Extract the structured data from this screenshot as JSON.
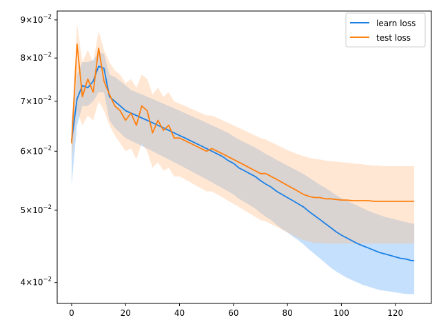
{
  "chart_data": {
    "type": "line",
    "title": "",
    "xlabel": "",
    "ylabel": "",
    "yscale": "log",
    "xlim": [
      -5.35,
      133.35
    ],
    "ylim": [
      0.0375,
      0.0925
    ],
    "x_ticks": [
      0,
      20,
      40,
      60,
      80,
      100,
      120
    ],
    "x_tick_labels": [
      "0",
      "20",
      "40",
      "60",
      "80",
      "100",
      "120"
    ],
    "y_ticks": [
      0.04,
      0.05,
      0.06,
      0.07,
      0.08,
      0.09
    ],
    "y_tick_mantissas": [
      "4",
      "5",
      "6",
      "7",
      "8",
      "9"
    ],
    "y_tick_base": "10",
    "y_tick_exponent": "−2",
    "grid": false,
    "legend_placement": "top-right",
    "x": [
      0,
      2,
      4,
      6,
      8,
      10,
      12,
      14,
      16,
      18,
      20,
      22,
      24,
      26,
      28,
      30,
      32,
      34,
      36,
      38,
      40,
      42,
      44,
      46,
      48,
      50,
      52,
      54,
      56,
      58,
      60,
      62,
      64,
      66,
      68,
      70,
      72,
      74,
      76,
      78,
      80,
      82,
      84,
      86,
      88,
      90,
      92,
      94,
      96,
      98,
      100,
      102,
      104,
      106,
      108,
      110,
      112,
      114,
      116,
      118,
      120,
      122,
      124,
      126,
      127
    ],
    "series": [
      {
        "name": "learn loss",
        "color": "#1f77b4",
        "line_color": "#1a80e6",
        "band_color": "#5aa6f5",
        "values": [
          0.062,
          0.0705,
          0.0735,
          0.073,
          0.0745,
          0.078,
          0.0775,
          0.071,
          0.07,
          0.069,
          0.068,
          0.0675,
          0.067,
          0.0665,
          0.066,
          0.0655,
          0.065,
          0.0645,
          0.064,
          0.0635,
          0.063,
          0.0625,
          0.062,
          0.0615,
          0.061,
          0.0605,
          0.06,
          0.0595,
          0.059,
          0.0583,
          0.0578,
          0.057,
          0.0565,
          0.056,
          0.0555,
          0.0548,
          0.0542,
          0.0537,
          0.053,
          0.0525,
          0.052,
          0.0515,
          0.051,
          0.0505,
          0.0498,
          0.0492,
          0.0486,
          0.048,
          0.0474,
          0.0468,
          0.0463,
          0.0459,
          0.0455,
          0.0451,
          0.0448,
          0.0445,
          0.0442,
          0.0439,
          0.0437,
          0.0435,
          0.0433,
          0.0431,
          0.043,
          0.0428,
          0.0428
        ],
        "lower": [
          0.054,
          0.065,
          0.069,
          0.069,
          0.07,
          0.072,
          0.072,
          0.066,
          0.0645,
          0.0635,
          0.0625,
          0.062,
          0.0615,
          0.061,
          0.0605,
          0.06,
          0.0595,
          0.059,
          0.0585,
          0.058,
          0.0575,
          0.057,
          0.0565,
          0.056,
          0.0555,
          0.055,
          0.0545,
          0.054,
          0.0535,
          0.053,
          0.0525,
          0.0518,
          0.0513,
          0.0508,
          0.0503,
          0.0496,
          0.049,
          0.0485,
          0.0478,
          0.0472,
          0.0467,
          0.0461,
          0.0456,
          0.045,
          0.0443,
          0.0437,
          0.0431,
          0.0425,
          0.0419,
          0.0414,
          0.041,
          0.0406,
          0.0403,
          0.04,
          0.0397,
          0.0395,
          0.0393,
          0.0391,
          0.039,
          0.0389,
          0.0388,
          0.0387,
          0.0386,
          0.0386,
          0.0386
        ],
        "upper": [
          0.066,
          0.076,
          0.079,
          0.079,
          0.0795,
          0.0815,
          0.081,
          0.076,
          0.0755,
          0.0745,
          0.0735,
          0.0725,
          0.072,
          0.0715,
          0.071,
          0.0705,
          0.07,
          0.0695,
          0.069,
          0.0685,
          0.068,
          0.0675,
          0.067,
          0.0665,
          0.066,
          0.0655,
          0.065,
          0.0645,
          0.064,
          0.0635,
          0.0628,
          0.0622,
          0.0617,
          0.0612,
          0.0607,
          0.0601,
          0.0595,
          0.059,
          0.0584,
          0.0579,
          0.0574,
          0.0569,
          0.0564,
          0.0559,
          0.0553,
          0.0547,
          0.0541,
          0.0536,
          0.053,
          0.0524,
          0.0519,
          0.0515,
          0.0511,
          0.0507,
          0.0503,
          0.0499,
          0.0496,
          0.0493,
          0.049,
          0.0488,
          0.0486,
          0.0484,
          0.0482,
          0.048,
          0.048
        ]
      },
      {
        "name": "test loss",
        "color": "#ff7f0e",
        "line_color": "#ff7f0e",
        "band_color": "#ffbb80",
        "values": [
          0.0615,
          0.0835,
          0.071,
          0.075,
          0.072,
          0.0825,
          0.0745,
          0.0715,
          0.069,
          0.068,
          0.066,
          0.0675,
          0.065,
          0.069,
          0.068,
          0.0635,
          0.066,
          0.064,
          0.065,
          0.0625,
          0.0625,
          0.062,
          0.0615,
          0.061,
          0.0605,
          0.06,
          0.0605,
          0.06,
          0.0595,
          0.059,
          0.0585,
          0.058,
          0.0575,
          0.057,
          0.0565,
          0.056,
          0.056,
          0.0555,
          0.055,
          0.0545,
          0.054,
          0.0535,
          0.053,
          0.0525,
          0.0522,
          0.052,
          0.052,
          0.0518,
          0.0518,
          0.0517,
          0.0516,
          0.0516,
          0.0515,
          0.0515,
          0.0515,
          0.0515,
          0.0514,
          0.0514,
          0.0514,
          0.0514,
          0.0514,
          0.0514,
          0.0514,
          0.0514,
          0.0514
        ],
        "lower": [
          0.058,
          0.068,
          0.065,
          0.067,
          0.066,
          0.07,
          0.068,
          0.065,
          0.063,
          0.0615,
          0.06,
          0.0605,
          0.0585,
          0.0615,
          0.06,
          0.057,
          0.058,
          0.0565,
          0.057,
          0.0555,
          0.0555,
          0.055,
          0.0545,
          0.054,
          0.0535,
          0.053,
          0.053,
          0.0525,
          0.052,
          0.0515,
          0.051,
          0.0505,
          0.05,
          0.0495,
          0.049,
          0.0485,
          0.0483,
          0.0479,
          0.0475,
          0.0471,
          0.0467,
          0.0463,
          0.0459,
          0.0456,
          0.0454,
          0.0452,
          0.0452,
          0.0451,
          0.0451,
          0.0451,
          0.0451,
          0.0451,
          0.0451,
          0.0451,
          0.0451,
          0.0451,
          0.0451,
          0.0451,
          0.0451,
          0.0451,
          0.0451,
          0.0451,
          0.0451,
          0.0451,
          0.0451
        ],
        "upper": [
          0.064,
          0.089,
          0.079,
          0.082,
          0.079,
          0.087,
          0.082,
          0.079,
          0.077,
          0.076,
          0.074,
          0.075,
          0.073,
          0.076,
          0.075,
          0.0715,
          0.073,
          0.071,
          0.072,
          0.07,
          0.0695,
          0.069,
          0.0685,
          0.068,
          0.0675,
          0.067,
          0.067,
          0.0665,
          0.066,
          0.0655,
          0.065,
          0.0645,
          0.064,
          0.0635,
          0.063,
          0.0625,
          0.0622,
          0.0617,
          0.0612,
          0.0607,
          0.0602,
          0.0598,
          0.0594,
          0.0591,
          0.0588,
          0.0586,
          0.0585,
          0.0583,
          0.0582,
          0.0581,
          0.058,
          0.0579,
          0.0578,
          0.0577,
          0.0576,
          0.0575,
          0.0574,
          0.0574,
          0.0573,
          0.0573,
          0.0573,
          0.0573,
          0.0573,
          0.0573,
          0.0573
        ]
      }
    ]
  }
}
